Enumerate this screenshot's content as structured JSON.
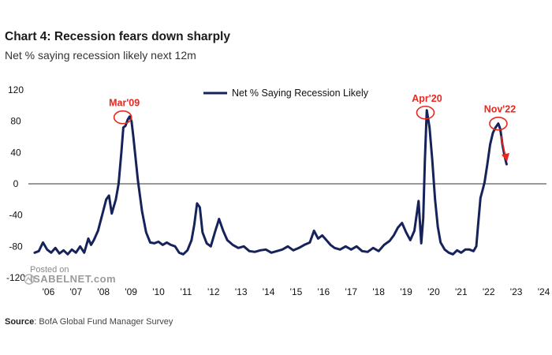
{
  "header": {
    "title": "Chart 4: Recession fears down sharply",
    "subtitle": "Net % saying recession likely next 12m"
  },
  "footer": {
    "source_label": "Source",
    "source_text": ": BofA Global Fund Manager Survey"
  },
  "watermark": {
    "line1": "Posted on",
    "line2": "ISABELNET.com"
  },
  "colors": {
    "series": "#16235b",
    "annotation": "#e8281e",
    "zero_line": "#333333"
  },
  "chart_data": {
    "type": "line",
    "title": "",
    "xlabel": "",
    "ylabel": "",
    "ylim": [
      -120,
      120
    ],
    "xlim": [
      2006,
      2024.6
    ],
    "yticks": [
      120,
      80,
      40,
      0,
      -40,
      -80,
      -120
    ],
    "ytick_labels": [
      "120",
      "80",
      "40",
      "0",
      "-40",
      "-80",
      "-120"
    ],
    "xticks": [
      2006,
      2007,
      2008,
      2009,
      2010,
      2011,
      2012,
      2013,
      2014,
      2015,
      2016,
      2017,
      2018,
      2019,
      2020,
      2021,
      2022,
      2023,
      2024
    ],
    "xtick_labels": [
      "'06",
      "'07",
      "'08",
      "'09",
      "'10",
      "'11",
      "'12",
      "'13",
      "'14",
      "'15",
      "'16",
      "'17",
      "'18",
      "'19",
      "'20",
      "'21",
      "'22",
      "'23",
      "'24"
    ],
    "grid": false,
    "legend_position": "top-center",
    "series": [
      {
        "name": "Net % Saying Recession Likely",
        "x": [
          2006.0,
          2006.15,
          2006.3,
          2006.45,
          2006.6,
          2006.75,
          2006.9,
          2007.05,
          2007.2,
          2007.35,
          2007.5,
          2007.65,
          2007.8,
          2007.95,
          2008.05,
          2008.15,
          2008.3,
          2008.45,
          2008.6,
          2008.7,
          2008.8,
          2008.95,
          2009.05,
          2009.15,
          2009.22,
          2009.3,
          2009.38,
          2009.45,
          2009.52,
          2009.58,
          2009.65,
          2009.75,
          2009.9,
          2010.05,
          2010.2,
          2010.35,
          2010.5,
          2010.65,
          2010.8,
          2010.95,
          2011.1,
          2011.25,
          2011.4,
          2011.55,
          2011.7,
          2011.8,
          2011.9,
          2012.0,
          2012.1,
          2012.25,
          2012.4,
          2012.55,
          2012.7,
          2012.85,
          2013.0,
          2013.2,
          2013.4,
          2013.6,
          2013.8,
          2014.0,
          2014.2,
          2014.4,
          2014.6,
          2014.8,
          2015.0,
          2015.2,
          2015.4,
          2015.6,
          2015.8,
          2016.0,
          2016.15,
          2016.3,
          2016.45,
          2016.6,
          2016.75,
          2016.9,
          2017.1,
          2017.3,
          2017.5,
          2017.7,
          2017.9,
          2018.1,
          2018.3,
          2018.5,
          2018.7,
          2018.9,
          2019.05,
          2019.2,
          2019.35,
          2019.5,
          2019.65,
          2019.8,
          2019.95,
          2020.05,
          2020.12,
          2020.18,
          2020.25,
          2020.35,
          2020.45,
          2020.55,
          2020.65,
          2020.75,
          2020.9,
          2021.05,
          2021.2,
          2021.35,
          2021.5,
          2021.65,
          2021.8,
          2021.95,
          2022.05,
          2022.12,
          2022.2,
          2022.28,
          2022.35,
          2022.45,
          2022.55,
          2022.65,
          2022.75,
          2022.85,
          2022.92,
          2023.0,
          2023.08,
          2023.15
        ],
        "y": [
          -88,
          -86,
          -75,
          -84,
          -88,
          -82,
          -89,
          -85,
          -90,
          -84,
          -88,
          -80,
          -88,
          -70,
          -78,
          -72,
          -60,
          -40,
          -20,
          -15,
          -38,
          -20,
          0,
          40,
          72,
          74,
          82,
          86,
          80,
          62,
          38,
          5,
          -35,
          -62,
          -75,
          -76,
          -74,
          -78,
          -75,
          -78,
          -80,
          -88,
          -90,
          -85,
          -72,
          -52,
          -25,
          -30,
          -62,
          -76,
          -80,
          -62,
          -45,
          -60,
          -72,
          -78,
          -82,
          -80,
          -86,
          -87,
          -85,
          -84,
          -88,
          -86,
          -84,
          -80,
          -85,
          -82,
          -78,
          -75,
          -60,
          -70,
          -66,
          -72,
          -78,
          -82,
          -84,
          -80,
          -84,
          -80,
          -86,
          -87,
          -82,
          -86,
          -78,
          -73,
          -66,
          -56,
          -50,
          -62,
          -72,
          -60,
          -22,
          -76,
          -44,
          30,
          94,
          72,
          30,
          -20,
          -55,
          -75,
          -84,
          -88,
          -90,
          -85,
          -88,
          -84,
          -84,
          -86,
          -80,
          -50,
          -18,
          -8,
          2,
          25,
          50,
          65,
          72,
          77,
          70,
          50,
          35,
          25
        ]
      }
    ],
    "annotations": [
      {
        "label": "Mar'09",
        "x": 2009.2,
        "y": 85
      },
      {
        "label": "Apr'20",
        "x": 2020.2,
        "y": 91
      },
      {
        "label": "Nov'22",
        "x": 2022.85,
        "y": 77
      }
    ]
  }
}
